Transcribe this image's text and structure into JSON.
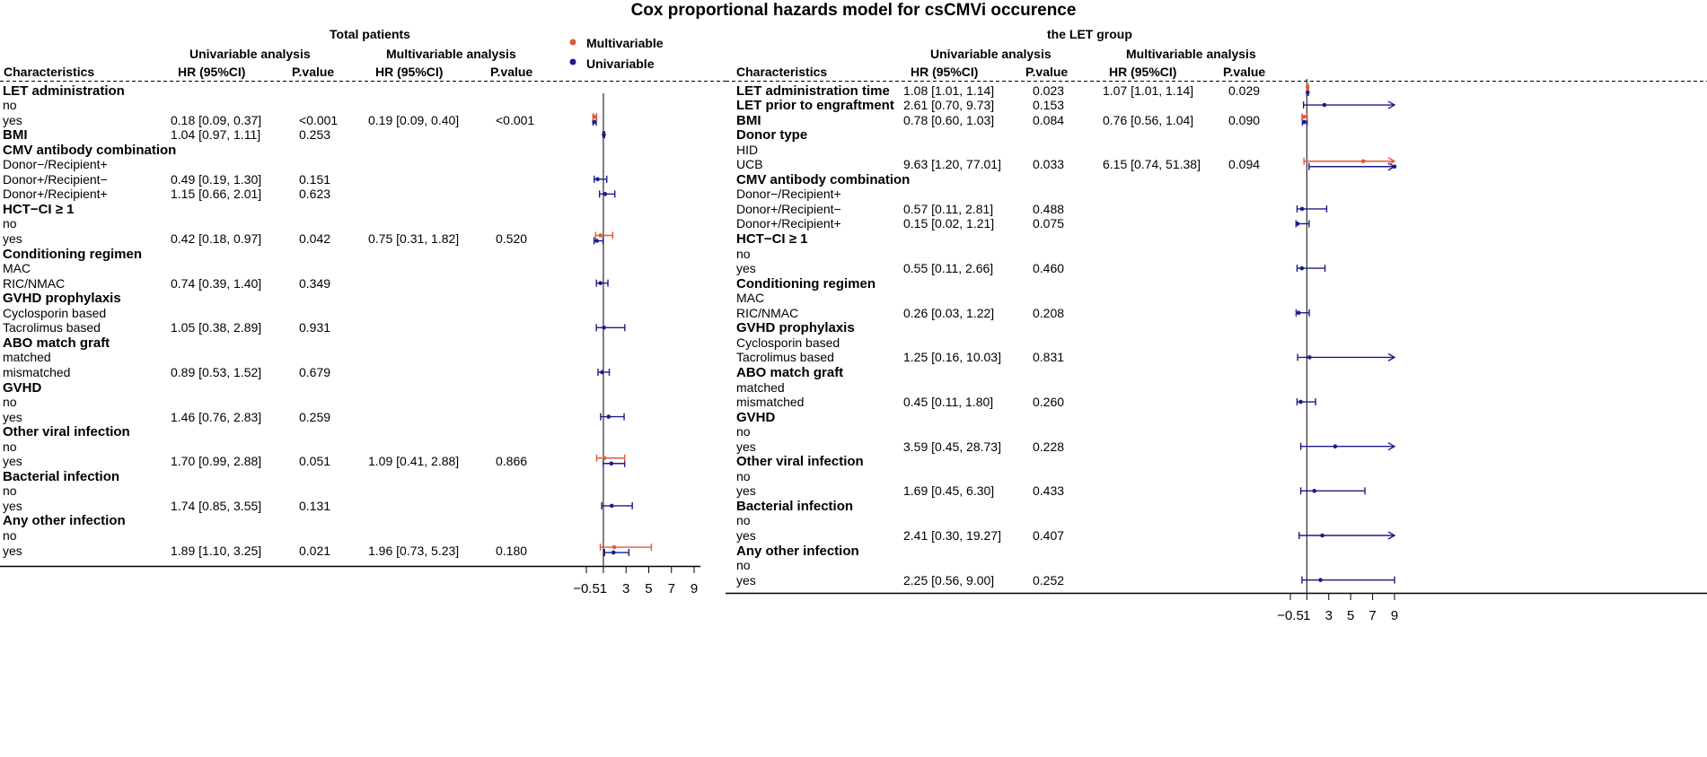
{
  "title": "Cox proportional hazards model for csCMVi occurence",
  "legend": [
    {
      "label": "Multivariable",
      "color": "#e05a3a"
    },
    {
      "label": "Univariable",
      "color": "#1b1b8a"
    }
  ],
  "colors": {
    "multivariable": "#e05a3a",
    "univariable": "#1b1b8a"
  },
  "left": {
    "title": "Total patients",
    "uni_header": "Univariable analysis",
    "multi_header": "Multivariable analysis",
    "columns": [
      "Characteristics",
      "HR (95%CI)",
      "P.value",
      "HR (95%CI)",
      "P.value"
    ],
    "ticks": [
      "−0.5",
      "1",
      "3",
      "5",
      "7",
      "9"
    ],
    "rows": [
      {
        "label": "LET administration",
        "bold": true
      },
      {
        "label": "no"
      },
      {
        "label": "yes",
        "uhr": "0.18 [0.09, 0.37]",
        "up": "<0.001",
        "mhr": "0.19 [0.09, 0.40]",
        "mp": "<0.001"
      },
      {
        "label": "BMI",
        "bold": true,
        "uhr": "1.04 [0.97, 1.11]",
        "up": "0.253"
      },
      {
        "label": "CMV antibody combination",
        "bold": true
      },
      {
        "label": "Donor−/Recipient+"
      },
      {
        "label": "Donor+/Recipient−",
        "uhr": "0.49 [0.19, 1.30]",
        "up": "0.151"
      },
      {
        "label": "Donor+/Recipient+",
        "uhr": "1.15 [0.66, 2.01]",
        "up": "0.623"
      },
      {
        "label": "HCT−CI ≥ 1",
        "bold": true
      },
      {
        "label": "no"
      },
      {
        "label": "yes",
        "uhr": "0.42 [0.18, 0.97]",
        "up": "0.042",
        "mhr": "0.75 [0.31, 1.82]",
        "mp": "0.520"
      },
      {
        "label": "Conditioning regimen",
        "bold": true
      },
      {
        "label": "MAC"
      },
      {
        "label": "RIC/NMAC",
        "uhr": "0.74 [0.39, 1.40]",
        "up": "0.349"
      },
      {
        "label": "GVHD prophylaxis",
        "bold": true
      },
      {
        "label": "Cyclosporin based"
      },
      {
        "label": "Tacrolimus based",
        "uhr": "1.05 [0.38, 2.89]",
        "up": "0.931"
      },
      {
        "label": "ABO match graft",
        "bold": true
      },
      {
        "label": "matched"
      },
      {
        "label": "mismatched",
        "uhr": "0.89 [0.53, 1.52]",
        "up": "0.679"
      },
      {
        "label": "GVHD",
        "bold": true
      },
      {
        "label": "no"
      },
      {
        "label": "yes",
        "uhr": "1.46 [0.76, 2.83]",
        "up": "0.259"
      },
      {
        "label": "Other viral infection",
        "bold": true
      },
      {
        "label": "no"
      },
      {
        "label": "yes",
        "uhr": "1.70 [0.99, 2.88]",
        "up": "0.051",
        "mhr": "1.09 [0.41, 2.88]",
        "mp": "0.866"
      },
      {
        "label": "Bacterial infection",
        "bold": true
      },
      {
        "label": "no"
      },
      {
        "label": "yes",
        "uhr": "1.74 [0.85, 3.55]",
        "up": "0.131"
      },
      {
        "label": "Any other infection",
        "bold": true
      },
      {
        "label": "no"
      },
      {
        "label": "yes",
        "uhr": "1.89 [1.10, 3.25]",
        "up": "0.021",
        "mhr": "1.96 [0.73, 5.23]",
        "mp": "0.180"
      }
    ]
  },
  "right": {
    "title": "the LET group",
    "uni_header": "Univariable analysis",
    "multi_header": "Multivariable analysis",
    "columns": [
      "Characteristics",
      "HR (95%CI)",
      "P.value",
      "HR (95%CI)",
      "P.value"
    ],
    "ticks": [
      "−0.5",
      "1",
      "3",
      "5",
      "7",
      "9"
    ],
    "rows": [
      {
        "label": "LET administration time",
        "bold": true,
        "uhr": "1.08 [1.01, 1.14]",
        "up": "0.023",
        "mhr": "1.07 [1.01, 1.14]",
        "mp": "0.029"
      },
      {
        "label": "LET prior to engraftment",
        "bold": true,
        "uhr": "2.61 [0.70, 9.73]",
        "up": "0.153"
      },
      {
        "label": "BMI",
        "bold": true,
        "uhr": "0.78 [0.60, 1.03]",
        "up": "0.084",
        "mhr": "0.76 [0.56, 1.04]",
        "mp": "0.090"
      },
      {
        "label": "Donor type",
        "bold": true
      },
      {
        "label": "HID"
      },
      {
        "label": "UCB",
        "uhr": "9.63 [1.20, 77.01]",
        "up": "0.033",
        "mhr": "6.15 [0.74, 51.38]",
        "mp": "0.094"
      },
      {
        "label": "CMV antibody combination",
        "bold": true
      },
      {
        "label": "Donor−/Recipient+"
      },
      {
        "label": "Donor+/Recipient−",
        "uhr": "0.57 [0.11, 2.81]",
        "up": "0.488"
      },
      {
        "label": "Donor+/Recipient+",
        "uhr": "0.15 [0.02, 1.21]",
        "up": "0.075"
      },
      {
        "label": "HCT−CI ≥ 1",
        "bold": true
      },
      {
        "label": "no"
      },
      {
        "label": "yes",
        "uhr": "0.55 [0.11, 2.66]",
        "up": "0.460"
      },
      {
        "label": "Conditioning regimen",
        "bold": true
      },
      {
        "label": "MAC"
      },
      {
        "label": "RIC/NMAC",
        "uhr": "0.26 [0.03, 1.22]",
        "up": "0.208"
      },
      {
        "label": "GVHD prophylaxis",
        "bold": true
      },
      {
        "label": "Cyclosporin based"
      },
      {
        "label": "Tacrolimus based",
        "uhr": "1.25 [0.16, 10.03]",
        "up": "0.831"
      },
      {
        "label": "ABO match graft",
        "bold": true
      },
      {
        "label": "matched"
      },
      {
        "label": "mismatched",
        "uhr": "0.45 [0.11, 1.80]",
        "up": "0.260"
      },
      {
        "label": "GVHD",
        "bold": true
      },
      {
        "label": "no"
      },
      {
        "label": "yes",
        "uhr": "3.59 [0.45, 28.73]",
        "up": "0.228"
      },
      {
        "label": "Other viral infection",
        "bold": true
      },
      {
        "label": "no"
      },
      {
        "label": "yes",
        "uhr": "1.69 [0.45, 6.30]",
        "up": "0.433"
      },
      {
        "label": "Bacterial infection",
        "bold": true
      },
      {
        "label": "no"
      },
      {
        "label": "yes",
        "uhr": "2.41 [0.30, 19.27]",
        "up": "0.407"
      },
      {
        "label": "Any other infection",
        "bold": true
      },
      {
        "label": "no"
      },
      {
        "label": "yes",
        "uhr": "2.25 [0.56, 9.00]",
        "up": "0.252"
      }
    ]
  },
  "chart_data": [
    {
      "type": "forest",
      "title": "Total patients",
      "xlim": [
        -0.5,
        9
      ],
      "reference_line": 1,
      "xticks": [
        -0.5,
        1,
        3,
        5,
        7,
        9
      ],
      "series": [
        {
          "name": "Univariable",
          "points": [
            {
              "row": 2,
              "hr": 0.18,
              "lo": 0.09,
              "hi": 0.37
            },
            {
              "row": 3,
              "hr": 1.04,
              "lo": 0.97,
              "hi": 1.11
            },
            {
              "row": 6,
              "hr": 0.49,
              "lo": 0.19,
              "hi": 1.3
            },
            {
              "row": 7,
              "hr": 1.15,
              "lo": 0.66,
              "hi": 2.01
            },
            {
              "row": 10,
              "hr": 0.42,
              "lo": 0.18,
              "hi": 0.97
            },
            {
              "row": 13,
              "hr": 0.74,
              "lo": 0.39,
              "hi": 1.4
            },
            {
              "row": 16,
              "hr": 1.05,
              "lo": 0.38,
              "hi": 2.89
            },
            {
              "row": 19,
              "hr": 0.89,
              "lo": 0.53,
              "hi": 1.52
            },
            {
              "row": 22,
              "hr": 1.46,
              "lo": 0.76,
              "hi": 2.83
            },
            {
              "row": 25,
              "hr": 1.7,
              "lo": 0.99,
              "hi": 2.88
            },
            {
              "row": 28,
              "hr": 1.74,
              "lo": 0.85,
              "hi": 3.55
            },
            {
              "row": 31,
              "hr": 1.89,
              "lo": 1.1,
              "hi": 3.25
            }
          ]
        },
        {
          "name": "Multivariable",
          "points": [
            {
              "row": 2,
              "hr": 0.19,
              "lo": 0.09,
              "hi": 0.4
            },
            {
              "row": 10,
              "hr": 0.75,
              "lo": 0.31,
              "hi": 1.82
            },
            {
              "row": 25,
              "hr": 1.09,
              "lo": 0.41,
              "hi": 2.88
            },
            {
              "row": 31,
              "hr": 1.96,
              "lo": 0.73,
              "hi": 5.23
            }
          ]
        }
      ]
    },
    {
      "type": "forest",
      "title": "the LET group",
      "xlim": [
        -0.5,
        9
      ],
      "reference_line": 1,
      "xticks": [
        -0.5,
        1,
        3,
        5,
        7,
        9
      ],
      "series": [
        {
          "name": "Univariable",
          "points": [
            {
              "row": 0,
              "hr": 1.08,
              "lo": 1.01,
              "hi": 1.14
            },
            {
              "row": 1,
              "hr": 2.61,
              "lo": 0.7,
              "hi": 9.73
            },
            {
              "row": 2,
              "hr": 0.78,
              "lo": 0.6,
              "hi": 1.03
            },
            {
              "row": 5,
              "hr": 9.63,
              "lo": 1.2,
              "hi": 77.01
            },
            {
              "row": 8,
              "hr": 0.57,
              "lo": 0.11,
              "hi": 2.81
            },
            {
              "row": 9,
              "hr": 0.15,
              "lo": 0.02,
              "hi": 1.21
            },
            {
              "row": 12,
              "hr": 0.55,
              "lo": 0.11,
              "hi": 2.66
            },
            {
              "row": 15,
              "hr": 0.26,
              "lo": 0.03,
              "hi": 1.22
            },
            {
              "row": 18,
              "hr": 1.25,
              "lo": 0.16,
              "hi": 10.03
            },
            {
              "row": 21,
              "hr": 0.45,
              "lo": 0.11,
              "hi": 1.8
            },
            {
              "row": 24,
              "hr": 3.59,
              "lo": 0.45,
              "hi": 28.73
            },
            {
              "row": 27,
              "hr": 1.69,
              "lo": 0.45,
              "hi": 6.3
            },
            {
              "row": 30,
              "hr": 2.41,
              "lo": 0.3,
              "hi": 19.27
            },
            {
              "row": 33,
              "hr": 2.25,
              "lo": 0.56,
              "hi": 9.0
            }
          ]
        },
        {
          "name": "Multivariable",
          "points": [
            {
              "row": 0,
              "hr": 1.07,
              "lo": 1.01,
              "hi": 1.14
            },
            {
              "row": 2,
              "hr": 0.76,
              "lo": 0.56,
              "hi": 1.04
            },
            {
              "row": 5,
              "hr": 6.15,
              "lo": 0.74,
              "hi": 51.38
            }
          ]
        }
      ]
    }
  ]
}
